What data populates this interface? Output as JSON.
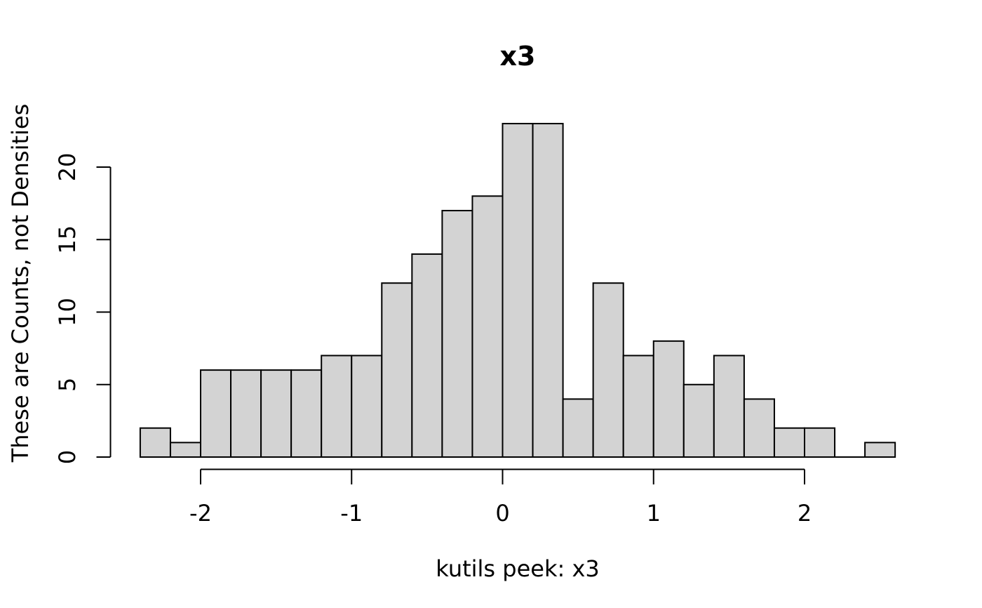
{
  "chart_data": {
    "type": "bar",
    "subtype": "histogram",
    "title": "x3",
    "xlabel": "kutils peek: x3",
    "ylabel": "These are Counts, not Densities",
    "bin_start": -2.4,
    "bin_width": 0.2,
    "bin_edges": [
      -2.4,
      -2.2,
      -2.0,
      -1.8,
      -1.6,
      -1.4,
      -1.2,
      -1.0,
      -0.8,
      -0.6,
      -0.4,
      -0.2,
      0.0,
      0.2,
      0.4,
      0.6,
      0.8,
      1.0,
      1.2,
      1.4,
      1.6,
      1.8,
      2.0,
      2.2,
      2.4,
      2.6
    ],
    "counts": [
      2,
      1,
      6,
      6,
      6,
      6,
      7,
      7,
      12,
      14,
      17,
      18,
      23,
      23,
      4,
      12,
      7,
      8,
      5,
      7,
      4,
      2,
      2,
      0,
      1
    ],
    "total_count": 200,
    "x_ticks": [
      -2,
      -1,
      0,
      1,
      2
    ],
    "x_tick_labels": [
      "-2",
      "-1",
      "0",
      "1",
      "2"
    ],
    "y_ticks": [
      0,
      5,
      10,
      15,
      20
    ],
    "y_tick_labels": [
      "0",
      "5",
      "10",
      "15",
      "20"
    ],
    "xlim": [
      -2.4,
      2.6
    ],
    "ylim": [
      0,
      23
    ],
    "grid": false,
    "legend_position": "none",
    "colors": {
      "bar_fill": "#d3d3d3",
      "bar_stroke": "#000000",
      "axis": "#000000",
      "text": "#000000",
      "background": "#ffffff"
    }
  }
}
